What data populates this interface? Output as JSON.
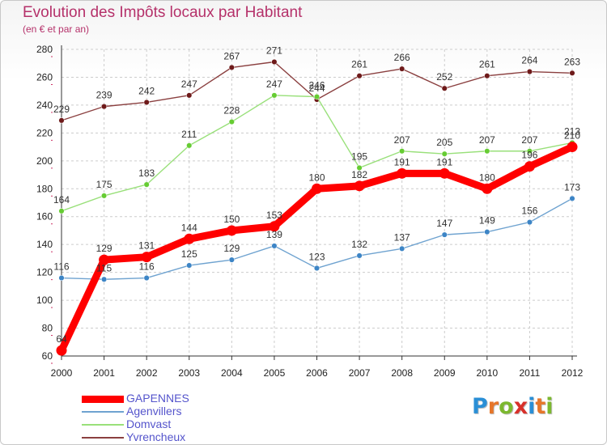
{
  "title": "Evolution des Impôts locaux par Habitant",
  "subtitle": "(en € et par an)",
  "logo": {
    "letters": [
      "P",
      "r",
      "o",
      "x",
      "i",
      "t",
      "i"
    ],
    "colors": [
      "#2a8fd6",
      "#e6762a",
      "#7cb82f",
      "#d8302a",
      "#2a8fd6",
      "#e6762a",
      "#7cb82f"
    ]
  },
  "chart_data": {
    "type": "line",
    "title": "Evolution des Impôts locaux par Habitant",
    "subtitle": "(en € et par an)",
    "xlabel": "",
    "ylabel": "",
    "x": [
      "2000",
      "2001",
      "2002",
      "2003",
      "2004",
      "2005",
      "2006",
      "2007",
      "2008",
      "2009",
      "2010",
      "2011",
      "2012"
    ],
    "ylim": [
      60,
      280
    ],
    "yticks": [
      "60",
      "80",
      "100",
      "120",
      "140",
      "160",
      "180",
      "200",
      "220",
      "240",
      "260",
      "280"
    ],
    "grid": true,
    "legend_position": "bottom-left",
    "series": [
      {
        "name": "Yvrencheux",
        "color": "#8b4040",
        "marker_color": "#6e1a1a",
        "values": [
          229,
          239,
          242,
          247,
          267,
          271,
          244,
          261,
          266,
          252,
          261,
          264,
          263
        ],
        "labels": [
          "229",
          "239",
          "242",
          "247",
          "267",
          "271",
          "244",
          "261",
          "266",
          "252",
          "261",
          "264",
          "263"
        ]
      },
      {
        "name": "Domvast",
        "color": "#99e07a",
        "marker_color": "#66cc33",
        "values": [
          164,
          175,
          183,
          211,
          228,
          247,
          246,
          195,
          207,
          205,
          207,
          207,
          213
        ],
        "labels": [
          "164",
          "175",
          "183",
          "211",
          "228",
          "247",
          "246",
          "195",
          "207",
          "205",
          "207",
          "207",
          "213"
        ]
      },
      {
        "name": "Agenvillers",
        "color": "#6fa3d0",
        "marker_color": "#3d85c6",
        "values": [
          116,
          115,
          116,
          125,
          129,
          139,
          123,
          132,
          137,
          147,
          149,
          156,
          173
        ],
        "labels": [
          "116",
          "115",
          "116",
          "125",
          "129",
          "139",
          "123",
          "132",
          "137",
          "147",
          "149",
          "156",
          "173"
        ]
      },
      {
        "name": "GAPENNES",
        "color": "#ff0000",
        "marker_color": "#ff0000",
        "values": [
          64,
          129,
          131,
          144,
          150,
          153,
          180,
          182,
          191,
          191,
          180,
          196,
          210
        ],
        "labels": [
          "64",
          "129",
          "131",
          "144",
          "150",
          "153",
          "180",
          "182",
          "191",
          "191",
          "180",
          "196",
          "210"
        ]
      }
    ],
    "legend": [
      {
        "name": "GAPENNES",
        "color": "#ff0000",
        "thick": true
      },
      {
        "name": "Agenvillers",
        "color": "#6fa3d0",
        "thick": false
      },
      {
        "name": "Domvast",
        "color": "#99e07a",
        "thick": false
      },
      {
        "name": "Yvrencheux",
        "color": "#8b4040",
        "thick": false
      }
    ]
  }
}
